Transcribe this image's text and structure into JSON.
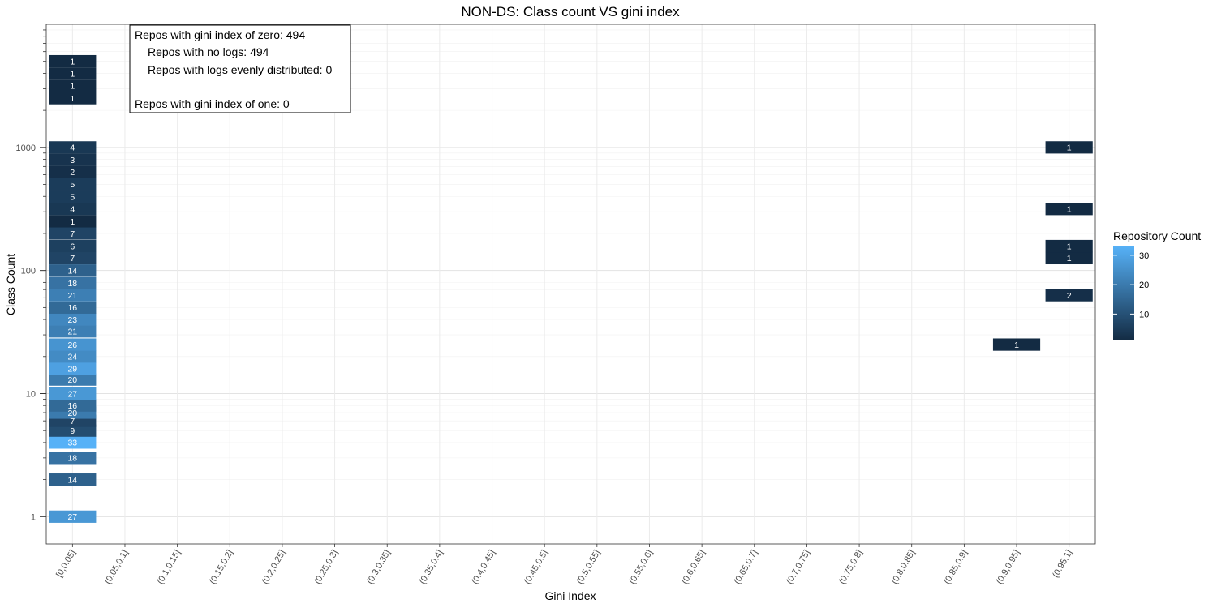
{
  "chart_data": {
    "type": "heatmap",
    "title": "NON-DS: Class count VS gini index",
    "xlabel": "Gini Index",
    "ylabel": "Class Count",
    "y_scale": "log10",
    "y_ticks": [
      1,
      10,
      100,
      1000
    ],
    "y_tick_labels": [
      "1",
      "10",
      "100",
      "1000"
    ],
    "x_categories": [
      "[0,0.05]",
      "(0.05,0.1]",
      "(0.1,0.15]",
      "(0.15,0.2]",
      "(0.2,0.25]",
      "(0.25,0.3]",
      "(0.3,0.35]",
      "(0.35,0.4]",
      "(0.4,0.45]",
      "(0.45,0.5]",
      "(0.5,0.55]",
      "(0.55,0.6]",
      "(0.6,0.65]",
      "(0.65,0.7]",
      "(0.7,0.75]",
      "(0.75,0.8]",
      "(0.8,0.85]",
      "(0.85,0.9]",
      "(0.9,0.95]",
      "(0.95,1]"
    ],
    "tiles": [
      {
        "x": "[0,0.05]",
        "y": 1,
        "count": 27
      },
      {
        "x": "[0,0.05]",
        "y": 2,
        "count": 14
      },
      {
        "x": "[0,0.05]",
        "y": 3,
        "count": 18
      },
      {
        "x": "[0,0.05]",
        "y": 4,
        "count": 33
      },
      {
        "x": "[0,0.05]",
        "y": 5,
        "count": 9
      },
      {
        "x": "[0,0.05]",
        "y": 6,
        "count": 7
      },
      {
        "x": "[0,0.05]",
        "y": 7,
        "count": 20
      },
      {
        "x": "[0,0.05]",
        "y": 8,
        "count": 16
      },
      {
        "x": "[0,0.05]",
        "y": 10,
        "count": 27
      },
      {
        "x": "[0,0.05]",
        "y": 13,
        "count": 20
      },
      {
        "x": "[0,0.05]",
        "y": 16,
        "count": 29
      },
      {
        "x": "[0,0.05]",
        "y": 20,
        "count": 24
      },
      {
        "x": "[0,0.05]",
        "y": 25,
        "count": 26
      },
      {
        "x": "[0,0.05]",
        "y": 32,
        "count": 21
      },
      {
        "x": "[0,0.05]",
        "y": 40,
        "count": 23
      },
      {
        "x": "[0,0.05]",
        "y": 50,
        "count": 16
      },
      {
        "x": "[0,0.05]",
        "y": 63,
        "count": 21
      },
      {
        "x": "[0,0.05]",
        "y": 79,
        "count": 18
      },
      {
        "x": "[0,0.05]",
        "y": 100,
        "count": 14
      },
      {
        "x": "[0,0.05]",
        "y": 126,
        "count": 7
      },
      {
        "x": "[0,0.05]",
        "y": 158,
        "count": 6
      },
      {
        "x": "[0,0.05]",
        "y": 200,
        "count": 7
      },
      {
        "x": "[0,0.05]",
        "y": 251,
        "count": 1
      },
      {
        "x": "[0,0.05]",
        "y": 316,
        "count": 4
      },
      {
        "x": "[0,0.05]",
        "y": 398,
        "count": 5
      },
      {
        "x": "[0,0.05]",
        "y": 501,
        "count": 5
      },
      {
        "x": "[0,0.05]",
        "y": 631,
        "count": 2
      },
      {
        "x": "[0,0.05]",
        "y": 794,
        "count": 3
      },
      {
        "x": "[0,0.05]",
        "y": 1000,
        "count": 4
      },
      {
        "x": "[0,0.05]",
        "y": 2511,
        "count": 1
      },
      {
        "x": "[0,0.05]",
        "y": 3162,
        "count": 1
      },
      {
        "x": "[0,0.05]",
        "y": 3981,
        "count": 1
      },
      {
        "x": "[0,0.05]",
        "y": 5012,
        "count": 1
      },
      {
        "x": "(0.9,0.95]",
        "y": 25,
        "count": 1
      },
      {
        "x": "(0.95,1]",
        "y": 63,
        "count": 2
      },
      {
        "x": "(0.95,1]",
        "y": 126,
        "count": 1
      },
      {
        "x": "(0.95,1]",
        "y": 158,
        "count": 1
      },
      {
        "x": "(0.95,1]",
        "y": 316,
        "count": 1
      },
      {
        "x": "(0.95,1]",
        "y": 1000,
        "count": 1
      }
    ],
    "color_scale": {
      "low": "#132b43",
      "high": "#56b1f7",
      "min": 1,
      "max": 33
    },
    "legend": {
      "title": "Repository Count",
      "ticks": [
        10,
        20,
        30
      ],
      "tick_labels": [
        "10",
        "20",
        "30"
      ],
      "position": "right"
    },
    "grid": true,
    "annotation": [
      "Repos with gini index of zero: 494",
      "Repos with no logs: 494",
      "Repos with logs evenly distributed: 0",
      "Repos with gini index of one: 0"
    ]
  }
}
